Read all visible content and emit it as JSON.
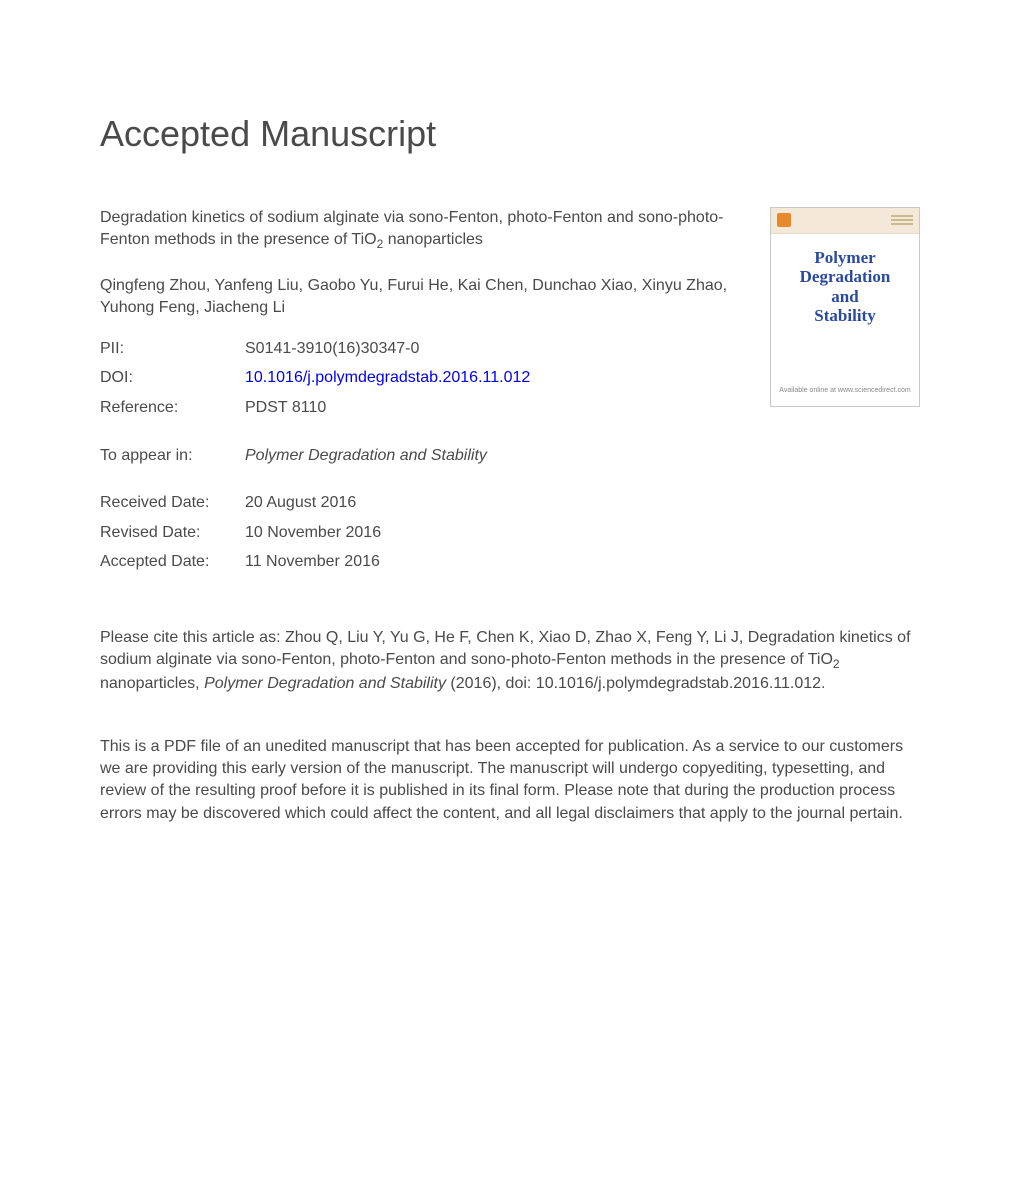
{
  "page_title": "Accepted Manuscript",
  "article_title_pre": "Degradation kinetics of sodium alginate via sono-Fenton, photo-Fenton and sono-photo-Fenton methods in the presence of TiO",
  "article_title_sub": "2",
  "article_title_post": " nanoparticles",
  "authors": "Qingfeng Zhou, Yanfeng Liu, Gaobo Yu, Furui He, Kai Chen, Dunchao Xiao, Xinyu Zhao, Yuhong Feng, Jiacheng Li",
  "meta": {
    "pii_label": "PII:",
    "pii_value": "S0141-3910(16)30347-0",
    "doi_label": "DOI:",
    "doi_value": "10.1016/j.polymdegradstab.2016.11.012",
    "ref_label": "Reference:",
    "ref_value": "PDST 8110",
    "appear_label": "To appear in:",
    "appear_value": "Polymer Degradation and Stability",
    "received_label": "Received Date:",
    "received_value": "20 August 2016",
    "revised_label": "Revised Date:",
    "revised_value": "10 November 2016",
    "accepted_label": "Accepted Date:",
    "accepted_value": "11 November 2016"
  },
  "cover": {
    "line1": "Polymer",
    "line2": "Degradation",
    "line3": "and",
    "line4": "Stability",
    "footer": "Available online at www.sciencedirect.com"
  },
  "citation": {
    "pre": "Please cite this article as: Zhou Q, Liu Y, Yu G, He F, Chen K, Xiao D, Zhao X, Feng Y, Li J, Degradation kinetics of sodium alginate via sono-Fenton, photo-Fenton and sono-photo-Fenton methods in the presence of TiO",
    "sub": "2",
    "mid": " nanoparticles, ",
    "journal": "Polymer Degradation and Stability",
    "post": " (2016), doi: 10.1016/j.polymdegradstab.2016.11.012."
  },
  "disclaimer": "This is a PDF file of an unedited manuscript that has been accepted for publication. As a service to our customers we are providing this early version of the manuscript. The manuscript will undergo copyediting, typesetting, and review of the resulting proof before it is published in its final form. Please note that during the production process errors may be discovered which could affect the content, and all legal disclaimers that apply to the journal pertain.",
  "colors": {
    "text": "#4a4a4a",
    "link": "#0000ee",
    "cover_title": "#2a4aa0",
    "cover_topbar": "#f4e9d8",
    "cover_logo": "#e68a2e",
    "background": "#ffffff"
  },
  "typography": {
    "page_title_fontsize": 36,
    "body_fontsize": 16,
    "cover_title_fontsize": 17
  }
}
